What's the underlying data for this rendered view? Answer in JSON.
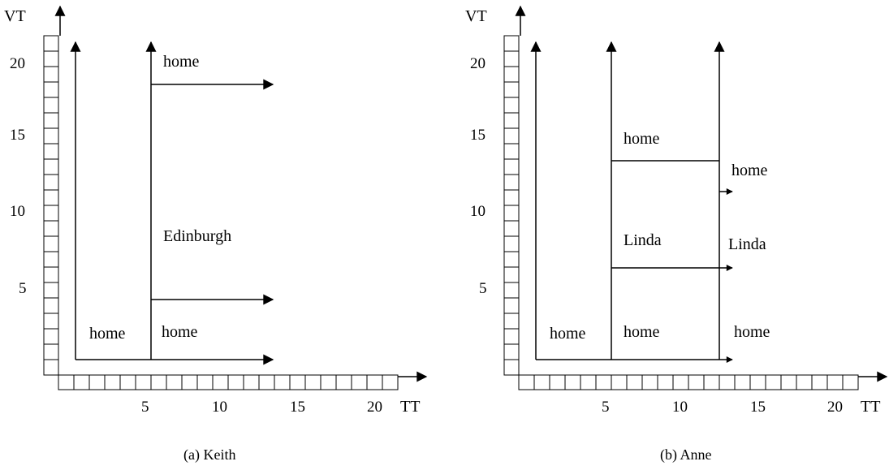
{
  "colors": {
    "ink": "#000000",
    "background": "#ffffff"
  },
  "axes": {
    "x_label": "TT",
    "y_label": "VT",
    "x_ticks": [
      "5",
      "10",
      "15",
      "20"
    ],
    "y_ticks": [
      "5",
      "10",
      "15",
      "20"
    ]
  },
  "panels": [
    {
      "caption": "(a) Keith",
      "labels": {
        "left_home": "home",
        "top_home": "home",
        "mid_edinburgh": "Edinburgh",
        "bottom_home": "home"
      }
    },
    {
      "caption": "(b) Anne",
      "labels": {
        "left_home": "home",
        "mid_top_home": "home",
        "mid_linda": "Linda",
        "mid_bottom_home": "home",
        "right_top_home": "home",
        "right_linda": "Linda",
        "right_bottom_home": "home"
      }
    }
  ]
}
